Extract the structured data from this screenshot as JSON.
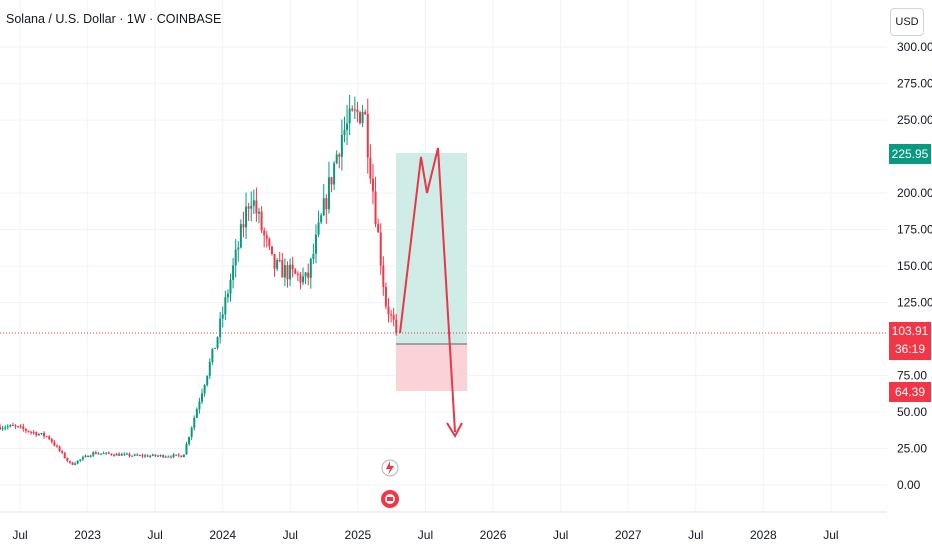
{
  "header": {
    "title": "Solana / U.S. Dollar · 1W · COINBASE",
    "currency_button": "USD"
  },
  "price_tags": {
    "target": "225.95",
    "current": "103.91",
    "countdown": "36:19",
    "stop": "64.39"
  },
  "colors": {
    "up": "#089981",
    "down": "#f23645",
    "profit_zone": "#cfece6",
    "loss_zone": "#fbd3d6",
    "drawing": "#e8364a"
  },
  "chart_data": {
    "type": "candlestick",
    "title": "Solana / U.S. Dollar · 1W · COINBASE",
    "y_ticks": [
      "0.00",
      "25.00",
      "50.00",
      "75.00",
      "125.00",
      "150.00",
      "175.00",
      "200.00",
      "250.00",
      "275.00",
      "300.00"
    ],
    "x_ticks": [
      "Jul",
      "2023",
      "Jul",
      "2024",
      "Jul",
      "2025",
      "Jul",
      "2026",
      "Jul",
      "2027",
      "Jul",
      "2028",
      "Jul"
    ],
    "ylim": [
      -5,
      305
    ],
    "grid": true,
    "series": [
      {
        "key_levels": [
          {
            "date": "2022-06",
            "price": 40
          },
          {
            "date": "2022-09",
            "price": 33
          },
          {
            "date": "2022-11",
            "price": 14
          },
          {
            "date": "2023-01",
            "price": 22
          },
          {
            "date": "2023-05",
            "price": 20
          },
          {
            "date": "2023-09",
            "price": 20
          },
          {
            "date": "2023-12",
            "price": 100
          },
          {
            "date": "2024-03",
            "price": 200
          },
          {
            "date": "2024-05",
            "price": 150
          },
          {
            "date": "2024-08",
            "price": 140
          },
          {
            "date": "2024-11",
            "price": 240
          },
          {
            "date": "2025-01",
            "price": 260
          },
          {
            "date": "2025-03",
            "price": 125
          },
          {
            "date": "2025-04",
            "price": 103.91
          }
        ]
      }
    ],
    "position": {
      "entry": 103.91,
      "target": 225.95,
      "stop": 64.39
    },
    "projection": [
      {
        "date": "2025-04",
        "price": 103.91
      },
      {
        "date": "2025-06",
        "price": 225.95
      },
      {
        "date": "2025-07",
        "price": 200
      },
      {
        "date": "2025-08",
        "price": 230
      },
      {
        "date": "2025-11",
        "price": 35
      }
    ]
  }
}
